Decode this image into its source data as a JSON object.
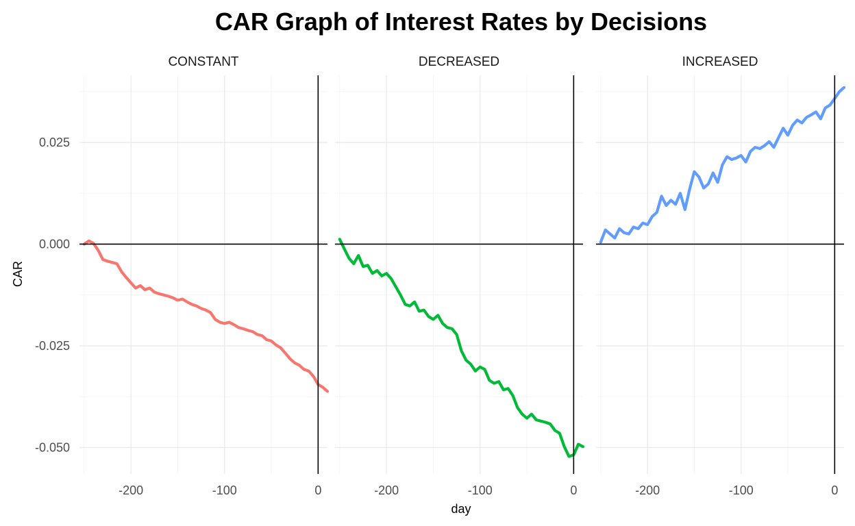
{
  "chart_data": {
    "type": "line",
    "title": "CAR Graph of Interest Rates by Decisions",
    "xlabel": "day",
    "ylabel": "CAR",
    "xlim": [
      -255,
      10
    ],
    "ylim": [
      -0.0565,
      0.0415
    ],
    "x_ticks": [
      -200,
      -100,
      0
    ],
    "x_tick_labels": [
      "-200",
      "-100",
      "0"
    ],
    "y_ticks": [
      -0.05,
      -0.025,
      0.0,
      0.025
    ],
    "y_tick_labels": [
      "-0.050",
      "-0.025",
      "0.000",
      "0.025"
    ],
    "grid": true,
    "legend": "none",
    "reference_lines": {
      "x": 0,
      "y": 0
    },
    "panels": [
      {
        "strip_label": "CONSTANT",
        "color": "#F8766D",
        "x": [
          -250,
          -245,
          -240,
          -235,
          -230,
          -225,
          -220,
          -215,
          -210,
          -205,
          -200,
          -195,
          -190,
          -185,
          -180,
          -175,
          -170,
          -165,
          -160,
          -155,
          -150,
          -145,
          -140,
          -135,
          -130,
          -125,
          -120,
          -115,
          -110,
          -105,
          -100,
          -95,
          -90,
          -85,
          -80,
          -75,
          -70,
          -65,
          -60,
          -55,
          -50,
          -45,
          -40,
          -35,
          -30,
          -25,
          -20,
          -15,
          -10,
          -5,
          0,
          5,
          10
        ],
        "values": [
          0.0,
          0.0008,
          0.0002,
          -0.0015,
          -0.0038,
          -0.0042,
          -0.0045,
          -0.0048,
          -0.0068,
          -0.0082,
          -0.0095,
          -0.0108,
          -0.0102,
          -0.0112,
          -0.0108,
          -0.0118,
          -0.0122,
          -0.0125,
          -0.0128,
          -0.0132,
          -0.0138,
          -0.0135,
          -0.0142,
          -0.0148,
          -0.0152,
          -0.0158,
          -0.0162,
          -0.0168,
          -0.0185,
          -0.0192,
          -0.0195,
          -0.0192,
          -0.0198,
          -0.0205,
          -0.0208,
          -0.0212,
          -0.0215,
          -0.0222,
          -0.0225,
          -0.0235,
          -0.0238,
          -0.0248,
          -0.0255,
          -0.0268,
          -0.0282,
          -0.0292,
          -0.0298,
          -0.0308,
          -0.0312,
          -0.0325,
          -0.0345,
          -0.0352,
          -0.0362
        ]
      },
      {
        "strip_label": "DECREASED",
        "color": "#00BA38",
        "x": [
          -250,
          -245,
          -240,
          -235,
          -230,
          -225,
          -220,
          -215,
          -210,
          -205,
          -200,
          -195,
          -190,
          -185,
          -180,
          -175,
          -170,
          -165,
          -160,
          -155,
          -150,
          -145,
          -140,
          -135,
          -130,
          -125,
          -120,
          -115,
          -110,
          -105,
          -100,
          -95,
          -90,
          -85,
          -80,
          -75,
          -70,
          -65,
          -60,
          -55,
          -50,
          -45,
          -40,
          -35,
          -30,
          -25,
          -20,
          -15,
          -10,
          -5,
          0,
          5,
          10
        ],
        "values": [
          0.0012,
          -0.0012,
          -0.0035,
          -0.0048,
          -0.0028,
          -0.0055,
          -0.0052,
          -0.0072,
          -0.0065,
          -0.0078,
          -0.0072,
          -0.0085,
          -0.0105,
          -0.0125,
          -0.0148,
          -0.0152,
          -0.0142,
          -0.0165,
          -0.0162,
          -0.0178,
          -0.0185,
          -0.0175,
          -0.0195,
          -0.0205,
          -0.0208,
          -0.0222,
          -0.0262,
          -0.0285,
          -0.0295,
          -0.0312,
          -0.0302,
          -0.0308,
          -0.0335,
          -0.0342,
          -0.0338,
          -0.0358,
          -0.0355,
          -0.0372,
          -0.0402,
          -0.0418,
          -0.0428,
          -0.0418,
          -0.0432,
          -0.0435,
          -0.0438,
          -0.0442,
          -0.0458,
          -0.0465,
          -0.0498,
          -0.0522,
          -0.0518,
          -0.0492,
          -0.0498
        ]
      },
      {
        "strip_label": "INCREASED",
        "color": "#619CFF",
        "x": [
          -250,
          -245,
          -240,
          -235,
          -230,
          -225,
          -220,
          -215,
          -210,
          -205,
          -200,
          -195,
          -190,
          -185,
          -180,
          -175,
          -170,
          -165,
          -160,
          -155,
          -150,
          -145,
          -140,
          -135,
          -130,
          -125,
          -120,
          -115,
          -110,
          -105,
          -100,
          -95,
          -90,
          -85,
          -80,
          -75,
          -70,
          -65,
          -60,
          -55,
          -50,
          -45,
          -40,
          -35,
          -30,
          -25,
          -20,
          -15,
          -10,
          -5,
          0,
          5,
          10
        ],
        "values": [
          0.0005,
          0.0035,
          0.0025,
          0.0015,
          0.0038,
          0.0028,
          0.0025,
          0.0042,
          0.0038,
          0.0052,
          0.0048,
          0.0068,
          0.0078,
          0.0118,
          0.0095,
          0.0108,
          0.0098,
          0.0125,
          0.0085,
          0.0135,
          0.0178,
          0.0165,
          0.0138,
          0.0148,
          0.0175,
          0.0152,
          0.0195,
          0.0215,
          0.0208,
          0.0212,
          0.0218,
          0.0202,
          0.0228,
          0.0238,
          0.0235,
          0.0242,
          0.0252,
          0.0238,
          0.0262,
          0.0285,
          0.0268,
          0.0292,
          0.0305,
          0.0298,
          0.0312,
          0.0318,
          0.0325,
          0.0308,
          0.0335,
          0.0342,
          0.0358,
          0.0375,
          0.0385
        ]
      }
    ]
  }
}
